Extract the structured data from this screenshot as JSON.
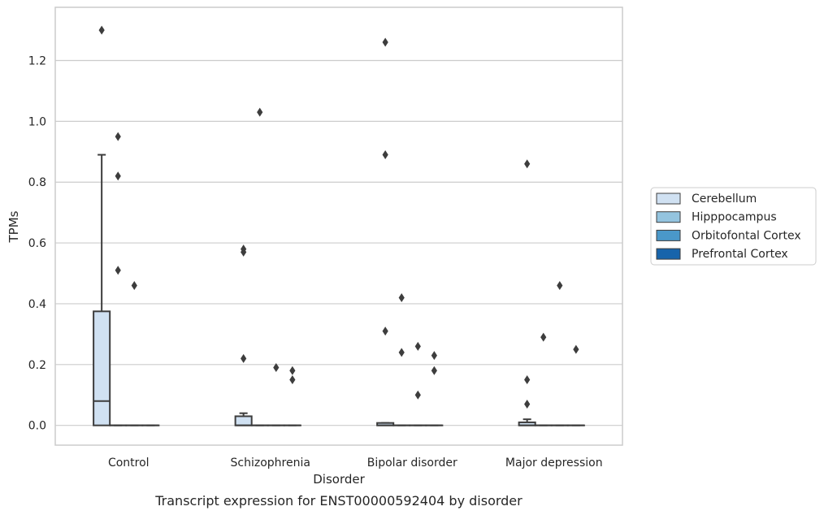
{
  "chart_data": {
    "type": "box",
    "title": "",
    "caption": "Transcript expression for ENST00000592404 by disorder",
    "xlabel": "Disorder",
    "ylabel": "TPMs",
    "ylim": [
      -0.065,
      1.375
    ],
    "yticks": [
      0.0,
      0.2,
      0.4,
      0.6,
      0.8,
      1.0,
      1.2
    ],
    "ytick_labels": [
      "0.0",
      "0.2",
      "0.4",
      "0.6",
      "0.8",
      "1.0",
      "1.2"
    ],
    "grid": "horizontal",
    "legend_position": "right",
    "categories": [
      "Control",
      "Schizophrenia",
      "Bipolar disorder",
      "Major depression"
    ],
    "series": [
      {
        "name": "Cerebellum",
        "color": "#d0e1f2",
        "boxes": [
          {
            "q1": 0.0,
            "median": 0.08,
            "q3": 0.375,
            "whisker_low": 0.0,
            "whisker_high": 0.89,
            "outliers": [
              1.3
            ]
          },
          {
            "q1": 0.0,
            "median": 0.0,
            "q3": 0.03,
            "whisker_low": 0.0,
            "whisker_high": 0.04,
            "outliers": [
              0.22,
              0.57,
              0.58
            ]
          },
          {
            "q1": 0.0,
            "median": 0.0,
            "q3": 0.008,
            "whisker_low": 0.0,
            "whisker_high": 0.008,
            "outliers": [
              0.31,
              0.89,
              1.26
            ]
          },
          {
            "q1": 0.0,
            "median": 0.0,
            "q3": 0.01,
            "whisker_low": 0.0,
            "whisker_high": 0.02,
            "outliers": [
              0.07,
              0.15,
              0.86
            ]
          }
        ]
      },
      {
        "name": "Hipppocampus",
        "color": "#94c4df",
        "boxes": [
          {
            "q1": 0.0,
            "median": 0.0,
            "q3": 0.0,
            "whisker_low": 0.0,
            "whisker_high": 0.0,
            "outliers": [
              0.51,
              0.82,
              0.95
            ]
          },
          {
            "q1": 0.0,
            "median": 0.0,
            "q3": 0.0,
            "whisker_low": 0.0,
            "whisker_high": 0.0,
            "outliers": [
              1.03
            ]
          },
          {
            "q1": 0.0,
            "median": 0.0,
            "q3": 0.0,
            "whisker_low": 0.0,
            "whisker_high": 0.0,
            "outliers": [
              0.24,
              0.42
            ]
          },
          {
            "q1": 0.0,
            "median": 0.0,
            "q3": 0.0,
            "whisker_low": 0.0,
            "whisker_high": 0.0,
            "outliers": [
              0.29
            ]
          }
        ]
      },
      {
        "name": "Orbitofontal Cortex",
        "color": "#4a98c9",
        "boxes": [
          {
            "q1": 0.0,
            "median": 0.0,
            "q3": 0.0,
            "whisker_low": 0.0,
            "whisker_high": 0.0,
            "outliers": [
              0.46
            ]
          },
          {
            "q1": 0.0,
            "median": 0.0,
            "q3": 0.0,
            "whisker_low": 0.0,
            "whisker_high": 0.0,
            "outliers": [
              0.19
            ]
          },
          {
            "q1": 0.0,
            "median": 0.0,
            "q3": 0.0,
            "whisker_low": 0.0,
            "whisker_high": 0.0,
            "outliers": [
              0.1,
              0.26
            ]
          },
          {
            "q1": 0.0,
            "median": 0.0,
            "q3": 0.0,
            "whisker_low": 0.0,
            "whisker_high": 0.0,
            "outliers": [
              0.46
            ]
          }
        ]
      },
      {
        "name": "Prefrontal Cortex",
        "color": "#1764ab",
        "boxes": [
          {
            "q1": 0.0,
            "median": 0.0,
            "q3": 0.0,
            "whisker_low": 0.0,
            "whisker_high": 0.0,
            "outliers": []
          },
          {
            "q1": 0.0,
            "median": 0.0,
            "q3": 0.0,
            "whisker_low": 0.0,
            "whisker_high": 0.0,
            "outliers": [
              0.15,
              0.18
            ]
          },
          {
            "q1": 0.0,
            "median": 0.0,
            "q3": 0.0,
            "whisker_low": 0.0,
            "whisker_high": 0.0,
            "outliers": [
              0.18,
              0.23
            ]
          },
          {
            "q1": 0.0,
            "median": 0.0,
            "q3": 0.0,
            "whisker_low": 0.0,
            "whisker_high": 0.0,
            "outliers": [
              0.25
            ]
          }
        ]
      }
    ]
  }
}
